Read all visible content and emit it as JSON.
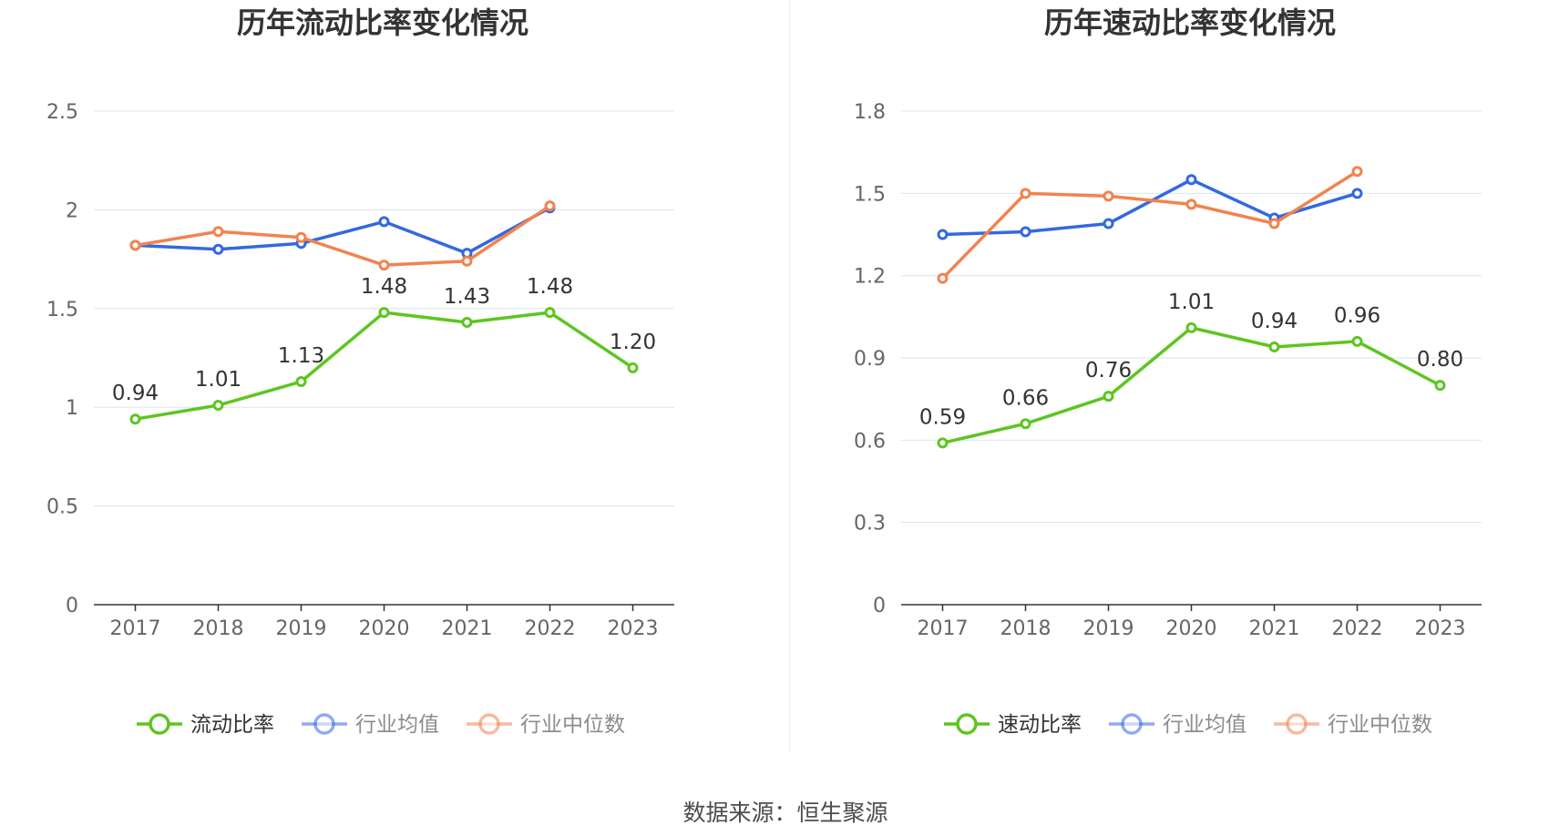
{
  "source": "数据来源：恒生聚源",
  "colors": {
    "main": "#5ec520",
    "avg": "#3369e0",
    "median": "#f2834e",
    "grid": "#dbe3f0",
    "axis": "#333333"
  },
  "chart_data": [
    {
      "type": "line",
      "title": "历年流动比率变化情况",
      "categories": [
        "2017",
        "2018",
        "2019",
        "2020",
        "2021",
        "2022",
        "2023"
      ],
      "ylim": [
        0,
        2.5
      ],
      "yticks": [
        "0",
        "0.5",
        "1",
        "1.5",
        "2",
        "2.5"
      ],
      "grid": true,
      "legend_position": "bottom",
      "series": [
        {
          "name": "流动比率",
          "key": "main",
          "values": [
            0.94,
            1.01,
            1.13,
            1.48,
            1.43,
            1.48,
            1.2
          ],
          "labels": [
            "0.94",
            "1.01",
            "1.13",
            "1.48",
            "1.43",
            "1.48",
            "1.20"
          ]
        },
        {
          "name": "行业均值",
          "key": "avg",
          "values": [
            1.82,
            1.8,
            1.83,
            1.94,
            1.78,
            2.01,
            null
          ]
        },
        {
          "name": "行业中位数",
          "key": "median",
          "values": [
            1.82,
            1.89,
            1.86,
            1.72,
            1.74,
            2.02,
            null
          ]
        }
      ]
    },
    {
      "type": "line",
      "title": "历年速动比率变化情况",
      "categories": [
        "2017",
        "2018",
        "2019",
        "2020",
        "2021",
        "2022",
        "2023"
      ],
      "ylim": [
        0,
        1.8
      ],
      "yticks": [
        "0",
        "0.3",
        "0.6",
        "0.9",
        "1.2",
        "1.5",
        "1.8"
      ],
      "grid": true,
      "legend_position": "bottom",
      "series": [
        {
          "name": "速动比率",
          "key": "main",
          "values": [
            0.59,
            0.66,
            0.76,
            1.01,
            0.94,
            0.96,
            0.8
          ],
          "labels": [
            "0.59",
            "0.66",
            "0.76",
            "1.01",
            "0.94",
            "0.96",
            "0.80"
          ]
        },
        {
          "name": "行业均值",
          "key": "avg",
          "values": [
            1.35,
            1.36,
            1.39,
            1.55,
            1.41,
            1.5,
            null
          ]
        },
        {
          "name": "行业中位数",
          "key": "median",
          "values": [
            1.19,
            1.5,
            1.49,
            1.46,
            1.39,
            1.58,
            null
          ]
        }
      ]
    }
  ]
}
